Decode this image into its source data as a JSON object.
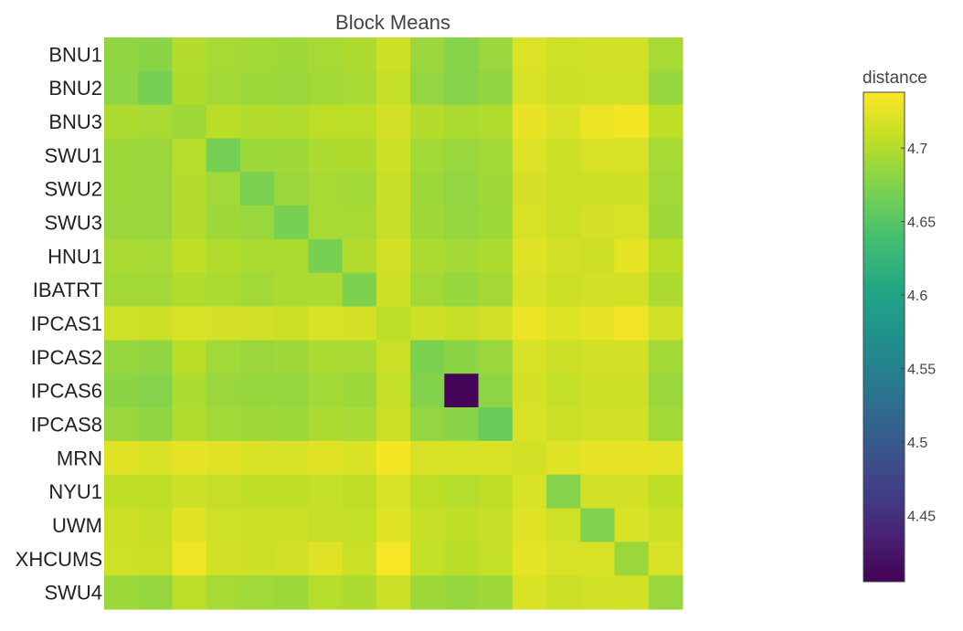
{
  "chart_data": {
    "type": "heatmap",
    "title": "Block Means",
    "categories": [
      "BNU1",
      "BNU2",
      "BNU3",
      "SWU1",
      "SWU2",
      "SWU3",
      "HNU1",
      "IBATRT",
      "IPCAS1",
      "IPCAS2",
      "IPCAS6",
      "IPCAS8",
      "MRN",
      "NYU1",
      "UWM",
      "XHCUMS",
      "SWU4"
    ],
    "colorbar": {
      "title": "distance",
      "range": [
        4.405,
        4.738
      ],
      "ticks": [
        4.7,
        4.65,
        4.6,
        4.55,
        4.5,
        4.45
      ],
      "colorscale": "viridis"
    },
    "z": [
      [
        4.683,
        4.68,
        4.7,
        4.694,
        4.692,
        4.69,
        4.694,
        4.697,
        4.712,
        4.688,
        4.678,
        4.688,
        4.721,
        4.714,
        4.716,
        4.716,
        4.694
      ],
      [
        4.681,
        4.669,
        4.698,
        4.692,
        4.689,
        4.687,
        4.692,
        4.694,
        4.708,
        4.684,
        4.677,
        4.683,
        4.718,
        4.712,
        4.714,
        4.714,
        4.686
      ],
      [
        4.697,
        4.695,
        4.69,
        4.703,
        4.7,
        4.699,
        4.705,
        4.704,
        4.716,
        4.7,
        4.696,
        4.699,
        4.727,
        4.72,
        4.728,
        4.733,
        4.706
      ],
      [
        4.689,
        4.688,
        4.701,
        4.668,
        4.689,
        4.69,
        4.697,
        4.698,
        4.712,
        4.692,
        4.687,
        4.692,
        4.721,
        4.713,
        4.718,
        4.719,
        4.694
      ],
      [
        4.689,
        4.687,
        4.7,
        4.691,
        4.672,
        4.688,
        4.694,
        4.692,
        4.71,
        4.689,
        4.684,
        4.69,
        4.717,
        4.711,
        4.712,
        4.713,
        4.691
      ],
      [
        4.688,
        4.687,
        4.7,
        4.69,
        4.687,
        4.67,
        4.694,
        4.694,
        4.71,
        4.69,
        4.685,
        4.689,
        4.718,
        4.711,
        4.717,
        4.718,
        4.69
      ],
      [
        4.695,
        4.694,
        4.706,
        4.699,
        4.696,
        4.696,
        4.67,
        4.699,
        4.716,
        4.696,
        4.693,
        4.697,
        4.722,
        4.716,
        4.713,
        4.726,
        4.703
      ],
      [
        4.692,
        4.692,
        4.699,
        4.696,
        4.692,
        4.696,
        4.696,
        4.673,
        4.712,
        4.692,
        4.686,
        4.693,
        4.719,
        4.713,
        4.715,
        4.716,
        4.697
      ],
      [
        4.714,
        4.712,
        4.72,
        4.717,
        4.716,
        4.713,
        4.718,
        4.717,
        4.704,
        4.713,
        4.71,
        4.715,
        4.728,
        4.722,
        4.726,
        4.732,
        4.715
      ],
      [
        4.686,
        4.683,
        4.703,
        4.691,
        4.688,
        4.69,
        4.696,
        4.695,
        4.711,
        4.672,
        4.68,
        4.687,
        4.718,
        4.712,
        4.716,
        4.716,
        4.692
      ],
      [
        4.68,
        4.677,
        4.697,
        4.687,
        4.686,
        4.685,
        4.692,
        4.689,
        4.708,
        4.676,
        4.408,
        4.681,
        4.717,
        4.708,
        4.712,
        4.712,
        4.687
      ],
      [
        4.688,
        4.683,
        4.699,
        4.692,
        4.69,
        4.689,
        4.696,
        4.694,
        4.711,
        4.684,
        4.679,
        4.661,
        4.719,
        4.712,
        4.716,
        4.715,
        4.692
      ],
      [
        4.723,
        4.72,
        4.727,
        4.723,
        4.72,
        4.719,
        4.723,
        4.72,
        4.733,
        4.718,
        4.718,
        4.72,
        4.716,
        4.722,
        4.726,
        4.727,
        4.725
      ],
      [
        4.706,
        4.705,
        4.712,
        4.709,
        4.706,
        4.705,
        4.708,
        4.705,
        4.718,
        4.704,
        4.701,
        4.705,
        4.719,
        4.677,
        4.716,
        4.716,
        4.706
      ],
      [
        4.712,
        4.709,
        4.724,
        4.714,
        4.712,
        4.712,
        4.709,
        4.708,
        4.722,
        4.709,
        4.706,
        4.71,
        4.722,
        4.714,
        4.675,
        4.72,
        4.712
      ],
      [
        4.714,
        4.711,
        4.73,
        4.716,
        4.713,
        4.715,
        4.723,
        4.711,
        4.735,
        4.708,
        4.703,
        4.708,
        4.725,
        4.718,
        4.718,
        4.687,
        4.718
      ],
      [
        4.689,
        4.685,
        4.704,
        4.694,
        4.691,
        4.689,
        4.701,
        4.697,
        4.712,
        4.69,
        4.686,
        4.69,
        4.72,
        4.712,
        4.715,
        4.715,
        4.687
      ]
    ]
  }
}
